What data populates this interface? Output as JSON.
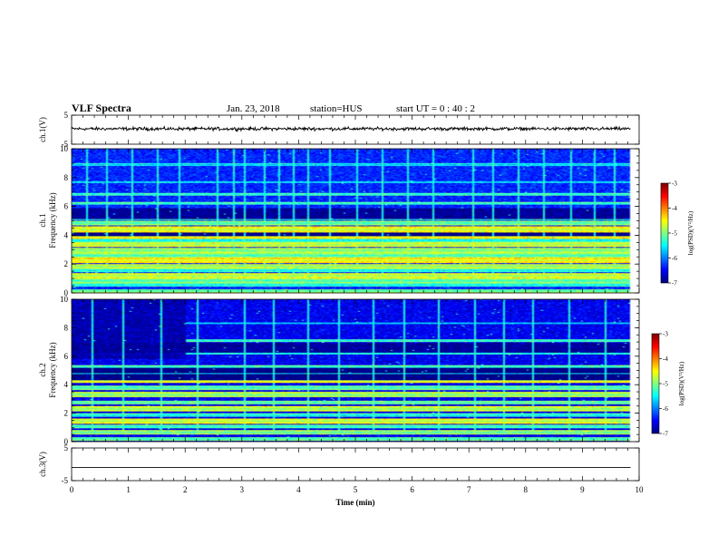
{
  "header": {
    "title": "VLF Spectra",
    "date": "Jan. 23, 2018",
    "station": "station=HUS",
    "start": "start UT =  0 : 40 : 2"
  },
  "chart_data": [
    {
      "type": "line",
      "name": "ch1-waveform",
      "ylabel": "ch.1(V)",
      "ylim": [
        -5,
        5
      ],
      "yticks": [
        "5",
        "-5"
      ],
      "xlim": [
        0,
        10
      ],
      "trace": {
        "level": 0.3,
        "noise_amplitude": 0.35,
        "t_end": 9.85
      }
    },
    {
      "type": "heatmap",
      "name": "ch1-spectrogram",
      "ylabel": "ch.1",
      "ylabel2": "Frequency (kHz)",
      "ylim": [
        0,
        10
      ],
      "yticks": [
        "0",
        "2",
        "4",
        "6",
        "8",
        "10"
      ],
      "xlim": [
        0,
        10
      ],
      "t_end": 9.85,
      "background_level": -6.35,
      "bands": [
        {
          "f": 0.15,
          "w": 0.12,
          "level": -5.3
        },
        {
          "f": 0.55,
          "w": 0.12,
          "level": -5.6
        },
        {
          "f": 0.85,
          "w": 0.15,
          "level": -5.3
        },
        {
          "f": 1.2,
          "w": 0.2,
          "level": -4.9
        },
        {
          "f": 1.55,
          "w": 0.12,
          "level": -5.6
        },
        {
          "f": 1.85,
          "w": 0.18,
          "level": -5.0
        },
        {
          "f": 2.25,
          "w": 0.2,
          "level": -4.7
        },
        {
          "f": 2.6,
          "w": 0.15,
          "level": -5.3
        },
        {
          "f": 2.95,
          "w": 0.2,
          "level": -5.1
        },
        {
          "f": 3.35,
          "w": 0.18,
          "level": -4.9
        },
        {
          "f": 3.65,
          "w": 0.12,
          "level": -5.6
        },
        {
          "f": 3.95,
          "w": 0.22,
          "level": -4.7
        },
        {
          "f": 4.4,
          "w": 0.22,
          "level": -4.8
        },
        {
          "f": 4.85,
          "w": 0.15,
          "level": -5.3
        },
        {
          "f": 5.15,
          "w": 0.08,
          "level": -5.6
        },
        {
          "f": 6.2,
          "w": 0.1,
          "level": -5.5
        },
        {
          "f": 6.85,
          "w": 0.1,
          "level": -5.5
        },
        {
          "f": 7.7,
          "w": 0.08,
          "level": -5.8
        },
        {
          "f": 8.9,
          "w": 0.08,
          "level": -5.8
        }
      ],
      "dark_bands": [
        {
          "f": 4.05,
          "w": 0.12,
          "level": -7.0
        },
        {
          "f": 5.5,
          "w": 0.4,
          "level": -6.9
        }
      ],
      "sferics": [
        0.25,
        0.62,
        1.05,
        1.5,
        1.9,
        2.55,
        2.85,
        3.05,
        3.4,
        3.65,
        3.9,
        4.15,
        4.55,
        5.0,
        5.45,
        5.9,
        6.35,
        7.05,
        7.4,
        7.85,
        8.3,
        8.8,
        9.2,
        9.55
      ],
      "colorbar": {
        "range": [
          -7,
          -3
        ],
        "ticks": [
          "-3",
          "-4",
          "-5",
          "-6",
          "-7"
        ],
        "label": "log(PSD)(V²/Hz)"
      }
    },
    {
      "type": "heatmap",
      "name": "ch2-spectrogram",
      "ylabel": "ch.2",
      "ylabel2": "Frequency (kHz)",
      "ylim": [
        0,
        10
      ],
      "yticks": [
        "0",
        "2",
        "4",
        "6",
        "8",
        "10"
      ],
      "xlim": [
        0,
        10
      ],
      "t_end": 9.85,
      "background_level": -6.55,
      "early_dark": {
        "t_end": 2.0,
        "f_min": 5.8,
        "level": -7.0
      },
      "bands": [
        {
          "f": 0.2,
          "w": 0.12,
          "level": -5.4
        },
        {
          "f": 0.65,
          "w": 0.15,
          "level": -5.2
        },
        {
          "f": 1.05,
          "w": 0.12,
          "level": -5.5
        },
        {
          "f": 1.45,
          "w": 0.18,
          "level": -4.9
        },
        {
          "f": 1.85,
          "w": 0.12,
          "level": -5.6
        },
        {
          "f": 2.3,
          "w": 0.18,
          "level": -5.0
        },
        {
          "f": 2.75,
          "w": 0.15,
          "level": -5.3
        },
        {
          "f": 3.3,
          "w": 0.18,
          "level": -5.1
        },
        {
          "f": 3.8,
          "w": 0.15,
          "level": -5.4
        },
        {
          "f": 4.3,
          "w": 0.2,
          "level": -4.8
        },
        {
          "f": 4.8,
          "w": 0.08,
          "level": -5.6
        },
        {
          "f": 5.25,
          "w": 0.1,
          "level": -5.5
        },
        {
          "f": 6.2,
          "w": 0.08,
          "level": -5.6
        },
        {
          "f": 7.1,
          "w": 0.1,
          "level": -5.5
        },
        {
          "f": 8.3,
          "w": 0.06,
          "level": -6.0
        }
      ],
      "dark_bands": [
        {
          "f": 4.55,
          "w": 0.22,
          "level": -7.0
        },
        {
          "f": 5.0,
          "w": 0.18,
          "level": -7.0
        },
        {
          "f": 6.6,
          "w": 0.35,
          "level": -6.9
        }
      ],
      "sferics": [
        0.35,
        0.9,
        1.55,
        2.2,
        3.05,
        3.55,
        4.15,
        4.7,
        5.3,
        5.85,
        6.45,
        7.1,
        7.6,
        8.1,
        8.75,
        9.4
      ],
      "colorbar": {
        "range": [
          -7,
          -3
        ],
        "ticks": [
          "-3",
          "-4",
          "-5",
          "-6",
          "-7"
        ],
        "label": "log(PSD)(V²/Hz)"
      }
    },
    {
      "type": "line",
      "name": "ch3-waveform",
      "ylabel": "ch.3(V)",
      "ylim": [
        -5,
        5
      ],
      "yticks": [
        "5",
        "-5"
      ],
      "xlim": [
        0,
        10
      ],
      "xlabel": "Time (min)",
      "xticks": [
        "0",
        "1",
        "2",
        "3",
        "4",
        "5",
        "6",
        "7",
        "8",
        "9",
        "10"
      ],
      "trace": {
        "level": -1.0,
        "noise_amplitude": 0.0,
        "t_end": 9.85
      }
    }
  ]
}
